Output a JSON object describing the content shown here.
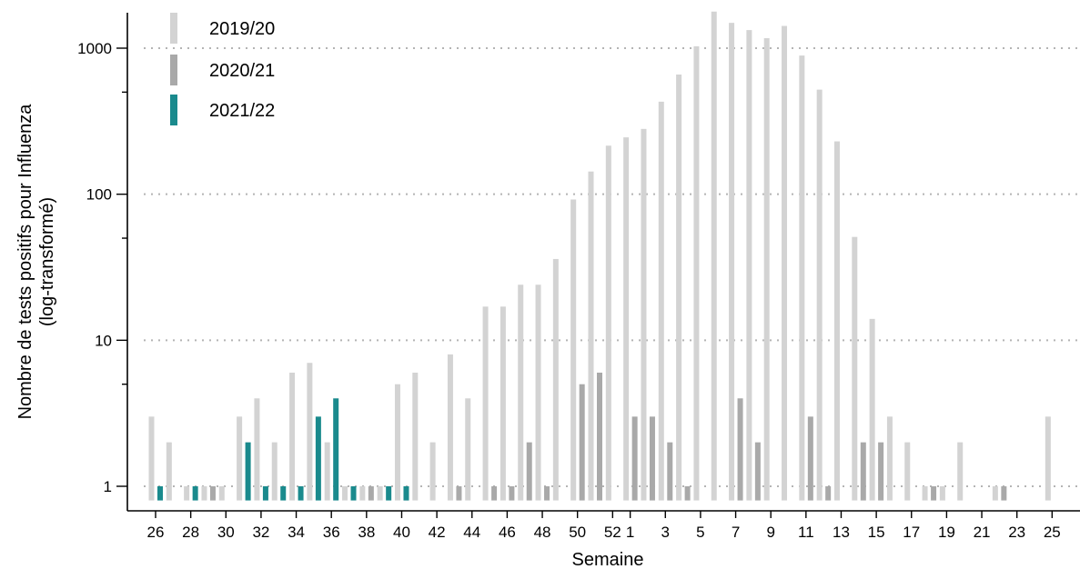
{
  "chart_data": {
    "type": "bar",
    "title": "",
    "xlabel": "Semaine",
    "ylabel": "Nombre de tests positifs pour Influenza",
    "ylabel_sub": "(log-transformé)",
    "yscale": "log",
    "ylim": [
      0.8,
      1800
    ],
    "yticks": [
      1,
      10,
      100,
      1000
    ],
    "ytick_labels": [
      "1",
      "10",
      "100",
      "1000"
    ],
    "grid": "horizontal dotted at major ticks",
    "legend_position": "top-left",
    "weeks": [
      26,
      27,
      28,
      29,
      30,
      31,
      32,
      33,
      34,
      35,
      36,
      37,
      38,
      39,
      40,
      41,
      42,
      43,
      44,
      45,
      46,
      47,
      48,
      49,
      50,
      51,
      52,
      1,
      2,
      3,
      4,
      5,
      6,
      7,
      8,
      9,
      10,
      11,
      12,
      13,
      14,
      15,
      16,
      17,
      18,
      19,
      20,
      21,
      22,
      23,
      24,
      25
    ],
    "xtick_labels": [
      "26",
      "28",
      "30",
      "32",
      "34",
      "36",
      "38",
      "40",
      "42",
      "44",
      "46",
      "48",
      "50",
      "52",
      "1",
      "3",
      "5",
      "7",
      "9",
      "11",
      "13",
      "15",
      "17",
      "19",
      "21",
      "23",
      "25"
    ],
    "series": [
      {
        "name": "2019/20",
        "color": "#d3d3d3",
        "values": [
          3,
          2,
          1,
          1,
          1,
          3,
          4,
          2,
          6,
          7,
          2,
          1,
          1,
          1,
          5,
          6,
          2,
          8,
          4,
          17,
          17,
          24,
          24,
          36,
          92,
          143,
          215,
          245,
          280,
          430,
          660,
          1030,
          1780,
          1490,
          1330,
          1170,
          1420,
          890,
          520,
          230,
          51,
          14,
          3,
          2,
          1,
          1,
          2,
          null,
          1,
          null,
          null,
          3
        ]
      },
      {
        "name": "2020/21",
        "color": "#a9a9a9",
        "values": [
          null,
          null,
          null,
          1,
          null,
          null,
          null,
          null,
          null,
          null,
          null,
          null,
          1,
          null,
          1,
          null,
          null,
          1,
          null,
          1,
          1,
          2,
          1,
          null,
          5,
          6,
          null,
          3,
          3,
          2,
          1,
          null,
          null,
          4,
          2,
          null,
          null,
          3,
          1,
          null,
          2,
          2,
          null,
          null,
          1,
          null,
          null,
          null,
          1,
          null,
          null,
          null
        ]
      },
      {
        "name": "2021/22",
        "color": "#1a8a8d",
        "values": [
          1,
          null,
          1,
          null,
          null,
          2,
          1,
          1,
          1,
          3,
          4,
          1,
          null,
          1,
          1,
          null,
          null,
          null,
          null,
          null,
          null,
          null,
          null,
          null,
          null,
          null,
          null,
          null,
          null,
          null,
          null,
          null,
          null,
          null,
          null,
          null,
          null,
          null,
          null,
          null,
          null,
          null,
          null,
          null,
          null,
          null,
          null,
          null,
          null,
          null,
          null,
          null
        ]
      }
    ]
  }
}
